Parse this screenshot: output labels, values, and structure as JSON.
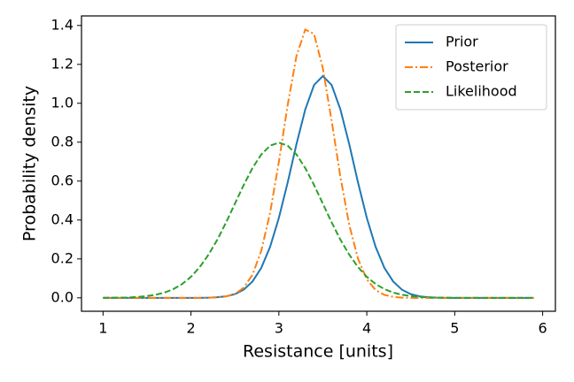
{
  "chart_data": {
    "type": "line",
    "x_label": "Resistance [units]",
    "y_label": "Probability density",
    "x": [
      1.0,
      1.1,
      1.2,
      1.3,
      1.4,
      1.5,
      1.6,
      1.7,
      1.8,
      1.9,
      2.0,
      2.1,
      2.2,
      2.3,
      2.4,
      2.5,
      2.6,
      2.7,
      2.8,
      2.9,
      3.0,
      3.1,
      3.2,
      3.3,
      3.4,
      3.5,
      3.6,
      3.7,
      3.8,
      3.9,
      4.0,
      4.1,
      4.2,
      4.3,
      4.4,
      4.5,
      4.6,
      4.7,
      4.8,
      4.9,
      5.0,
      5.1,
      5.2,
      5.3,
      5.4,
      5.5,
      5.6,
      5.7,
      5.8,
      5.9
    ],
    "series": [
      {
        "name": "Prior",
        "color": "#1f77b4",
        "linestyle": "solid",
        "values": [
          0,
          0,
          0,
          0,
          0,
          0,
          0,
          0,
          0,
          0,
          0,
          0,
          0.001,
          0.003,
          0.008,
          0.019,
          0.042,
          0.084,
          0.154,
          0.262,
          0.411,
          0.593,
          0.79,
          0.968,
          1.094,
          1.14,
          1.094,
          0.968,
          0.79,
          0.593,
          0.411,
          0.262,
          0.154,
          0.084,
          0.042,
          0.019,
          0.008,
          0.003,
          0.001,
          0,
          0,
          0,
          0,
          0,
          0,
          0,
          0,
          0,
          0,
          0
        ]
      },
      {
        "name": "Posterior",
        "color": "#ff7f0e",
        "linestyle": "dashdot",
        "values": [
          0,
          0,
          0,
          0,
          0,
          0,
          0,
          0,
          0,
          0,
          0,
          0,
          0.001,
          0.002,
          0.007,
          0.02,
          0.052,
          0.119,
          0.242,
          0.437,
          0.699,
          0.991,
          1.243,
          1.379,
          1.356,
          1.18,
          0.91,
          0.621,
          0.375,
          0.201,
          0.095,
          0.04,
          0.015,
          0.005,
          0.001,
          0,
          0,
          0,
          0,
          0,
          0,
          0,
          0,
          0,
          0,
          0,
          0,
          0,
          0,
          0
        ]
      },
      {
        "name": "Likelihood",
        "color": "#2ca02c",
        "linestyle": "dashed",
        "values": [
          0,
          0.001,
          0.001,
          0.002,
          0.005,
          0.009,
          0.016,
          0.027,
          0.045,
          0.071,
          0.108,
          0.158,
          0.222,
          0.299,
          0.388,
          0.484,
          0.58,
          0.667,
          0.737,
          0.782,
          0.798,
          0.782,
          0.737,
          0.667,
          0.58,
          0.484,
          0.388,
          0.299,
          0.222,
          0.158,
          0.108,
          0.071,
          0.045,
          0.027,
          0.016,
          0.009,
          0.005,
          0.002,
          0.001,
          0.001,
          0,
          0,
          0,
          0,
          0,
          0,
          0,
          0,
          0,
          0
        ]
      }
    ],
    "xlim": [
      0.755,
      6.145
    ],
    "ylim": [
      -0.069,
      1.449
    ],
    "xticks": [
      1,
      2,
      3,
      4,
      5,
      6
    ],
    "yticks": [
      {
        "value": 0.0,
        "label": "0.0"
      },
      0.2,
      0.4,
      0.6,
      0.8,
      {
        "value": 1.0,
        "label": "1.0"
      },
      1.2,
      1.4
    ],
    "legend": "upper right",
    "grid": false
  }
}
